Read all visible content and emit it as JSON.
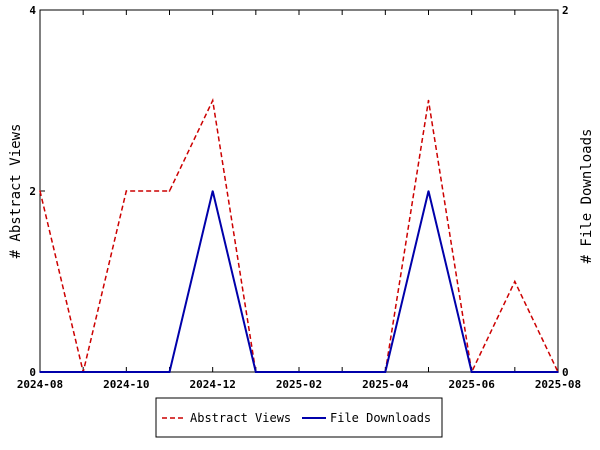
{
  "chart_data": {
    "type": "line",
    "x": [
      "2024-08",
      "2024-09",
      "2024-10",
      "2024-11",
      "2024-12",
      "2025-01",
      "2025-02",
      "2025-03",
      "2025-04",
      "2025-05",
      "2025-06",
      "2025-07",
      "2025-08"
    ],
    "x_tick_labels": [
      "2024-08",
      "2024-10",
      "2024-12",
      "2025-02",
      "2025-04",
      "2025-06",
      "2025-08"
    ],
    "left_axis": {
      "label": "# Abstract Views",
      "ylim": [
        0,
        4
      ],
      "tick_labels": [
        "0",
        "2",
        "4"
      ]
    },
    "right_axis": {
      "label": "# File Downloads",
      "ylim": [
        0,
        2
      ],
      "tick_labels": [
        "0",
        "2"
      ]
    },
    "series": [
      {
        "name": "Abstract Views",
        "axis": "left",
        "color": "#cc0000",
        "dash": "dashed",
        "values": [
          2,
          0,
          2,
          2,
          3,
          0,
          0,
          0,
          0,
          3,
          0,
          1,
          0
        ]
      },
      {
        "name": "File Downloads",
        "axis": "right",
        "color": "#0000aa",
        "dash": "solid",
        "values": [
          0,
          0,
          0,
          0,
          1,
          0,
          0,
          0,
          0,
          1,
          0,
          0,
          0
        ]
      }
    ],
    "legend": "bottom",
    "grid": false
  }
}
